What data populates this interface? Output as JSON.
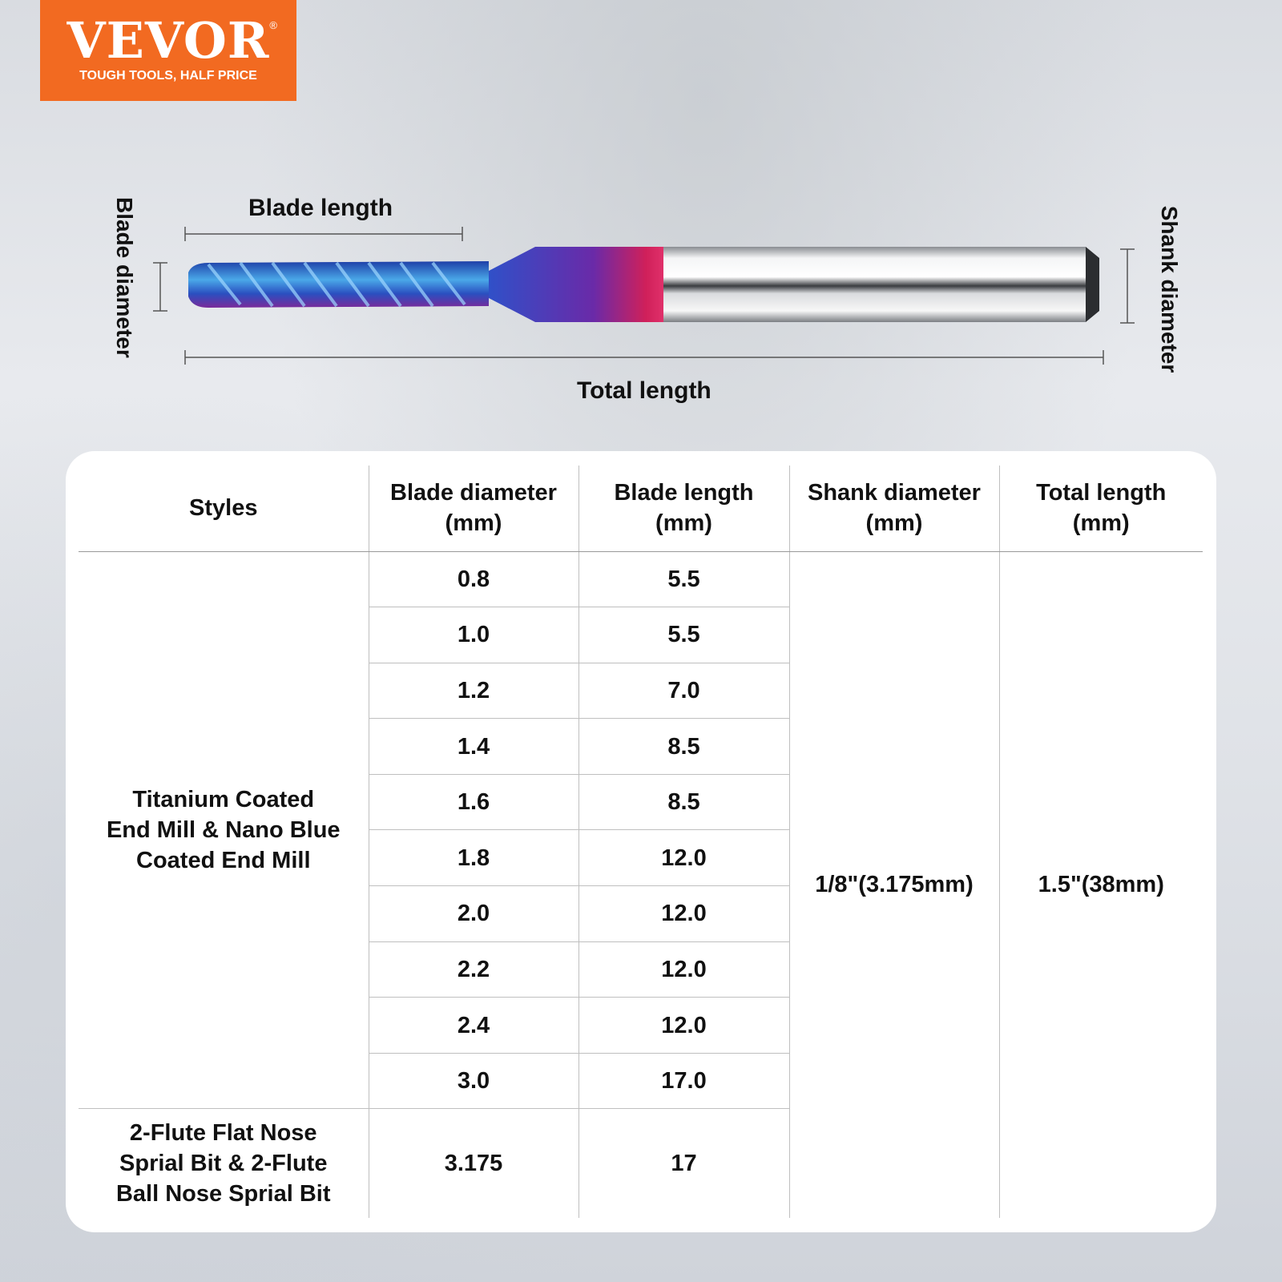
{
  "logo": {
    "brand": "VEVOR",
    "registered": "®",
    "tagline": "TOUGH TOOLS, HALF PRICE",
    "color": "#f26a21"
  },
  "diagram": {
    "blade_length": "Blade length",
    "blade_diameter": "Blade diameter",
    "shank_diameter": "Shank diameter",
    "total_length": "Total length"
  },
  "table": {
    "header_lines": [
      [
        "Styles"
      ],
      [
        "Blade diameter",
        "(mm)"
      ],
      [
        "Blade length",
        "(mm)"
      ],
      [
        "Shank diameter",
        "(mm)"
      ],
      [
        "Total length",
        "(mm)"
      ]
    ],
    "style_1": [
      "Titanium Coated",
      "End Mill & Nano Blue",
      "Coated End Mill"
    ],
    "style_2": [
      "2-Flute Flat Nose",
      "Sprial Bit & 2-Flute",
      "Ball Nose Sprial Bit"
    ],
    "rows": [
      {
        "blade_diameter": "0.8",
        "blade_length": "5.5"
      },
      {
        "blade_diameter": "1.0",
        "blade_length": "5.5"
      },
      {
        "blade_diameter": "1.2",
        "blade_length": "7.0"
      },
      {
        "blade_diameter": "1.4",
        "blade_length": "8.5"
      },
      {
        "blade_diameter": "1.6",
        "blade_length": "8.5"
      },
      {
        "blade_diameter": "1.8",
        "blade_length": "12.0"
      },
      {
        "blade_diameter": "2.0",
        "blade_length": "12.0"
      },
      {
        "blade_diameter": "2.2",
        "blade_length": "12.0"
      },
      {
        "blade_diameter": "2.4",
        "blade_length": "12.0"
      },
      {
        "blade_diameter": "3.0",
        "blade_length": "17.0"
      },
      {
        "blade_diameter": "3.175",
        "blade_length": "17"
      }
    ],
    "shank_diameter": "1/8\"(3.175mm)",
    "total_length": "1.5\"(38mm)"
  }
}
